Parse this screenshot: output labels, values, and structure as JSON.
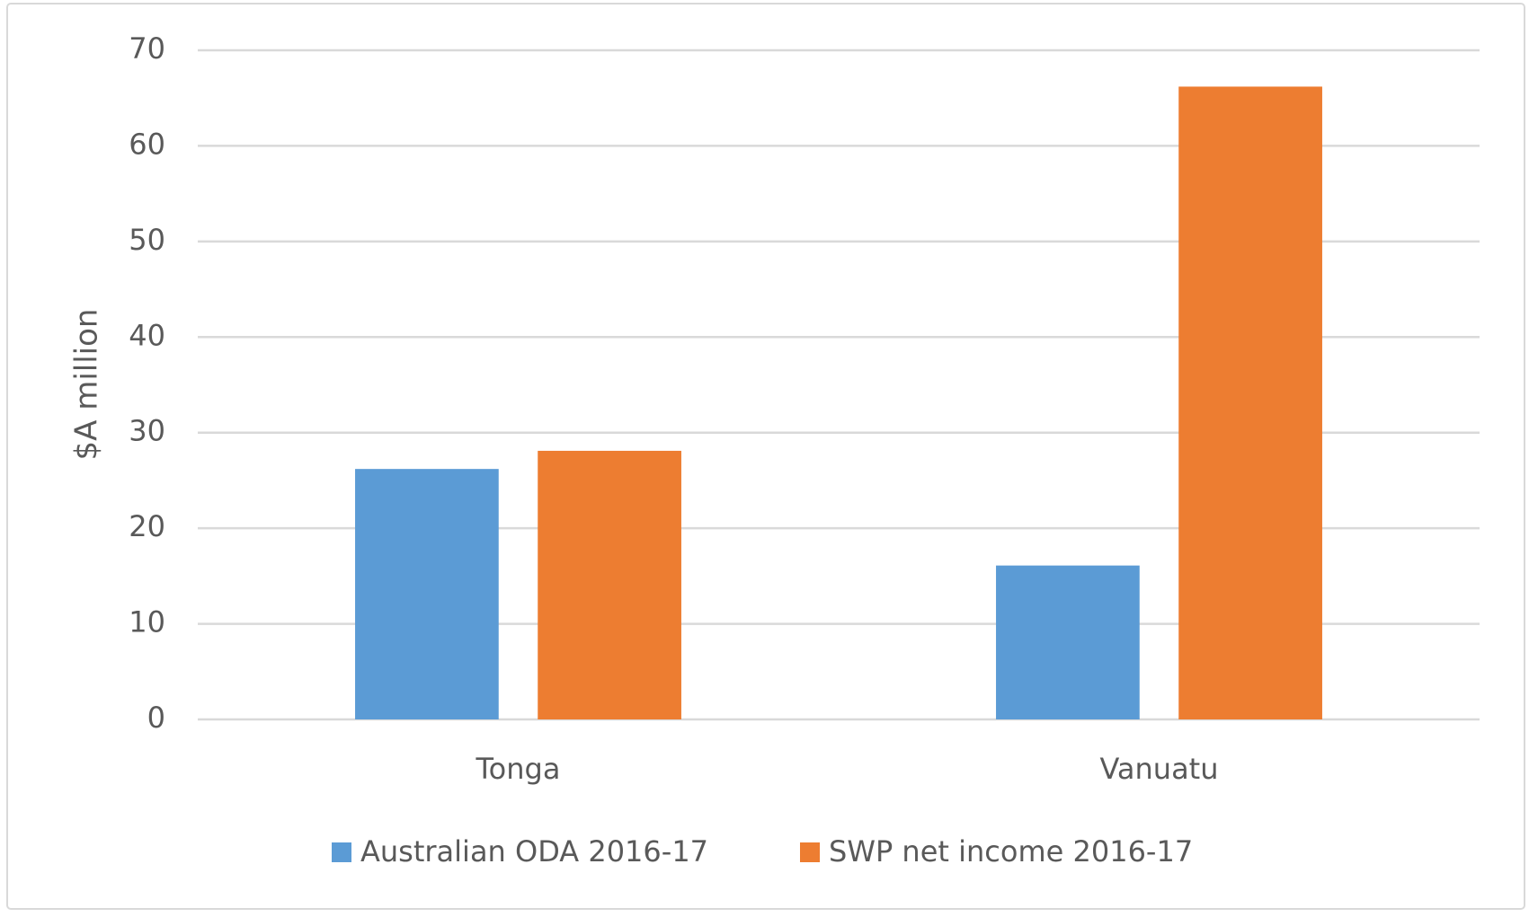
{
  "chart_data": {
    "type": "bar",
    "y_label": "$A million",
    "categories": [
      "Tonga",
      "Vanuatu"
    ],
    "series": [
      {
        "name": "Australian ODA 2016-17",
        "color": "#5b9bd5",
        "values": [
          26.2,
          16.1
        ]
      },
      {
        "name": "SWP net income 2016-17",
        "color": "#ed7d31",
        "values": [
          28.1,
          66.2
        ]
      }
    ],
    "ylim": [
      0,
      70
    ],
    "yticks": [
      0,
      10,
      20,
      30,
      40,
      50,
      60,
      70
    ],
    "grid": true,
    "legend": "bottom"
  }
}
